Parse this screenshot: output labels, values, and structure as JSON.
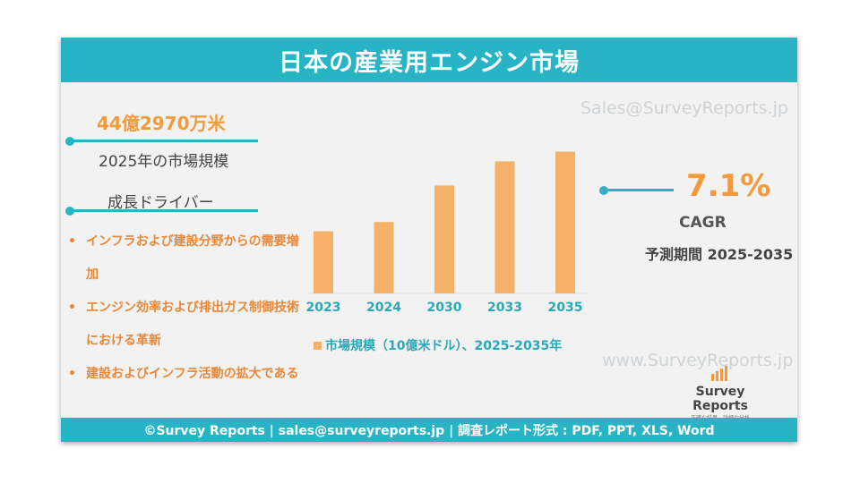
{
  "header": {
    "title": "日本の産業用エンジン市場"
  },
  "watermark": {
    "top": "Sales@SurveyReports.jp",
    "bottom": "www.SurveyReports.jp"
  },
  "left_panel": {
    "market_value": "44億2970万米",
    "market_label": "2025年の市場規模",
    "drivers_title": "成長ドライバー",
    "drivers": [
      "インフラおよび建設分野からの需要増加",
      "エンジン効率および排出ガス制御技術における革新",
      "建設およびインフラ活動の拡大である"
    ]
  },
  "right_panel": {
    "cagr_value": "7.1%",
    "cagr_label": "CAGR",
    "forecast_period": "予測期間 2025-2035"
  },
  "logo": {
    "name": "Survey Reports",
    "tagline": "正確な結果、詳細な分析"
  },
  "footer": {
    "text": "©Survey Reports | sales@surveyreports.jp |  調査レポート形式 : PDF, PPT, XLS, Word"
  },
  "colors": {
    "accent": "#28b4c4",
    "orange": "#f29a3c",
    "bar": "#f5b06a"
  },
  "chart_data": {
    "type": "bar",
    "categories": [
      "2023",
      "2024",
      "2030",
      "2033",
      "2035"
    ],
    "values": [
      3.86,
      4.43,
      6.7,
      8.2,
      8.8
    ],
    "legend": "市場規模（10億米ドル）、2025-2035年",
    "ylim": [
      0,
      10
    ]
  }
}
